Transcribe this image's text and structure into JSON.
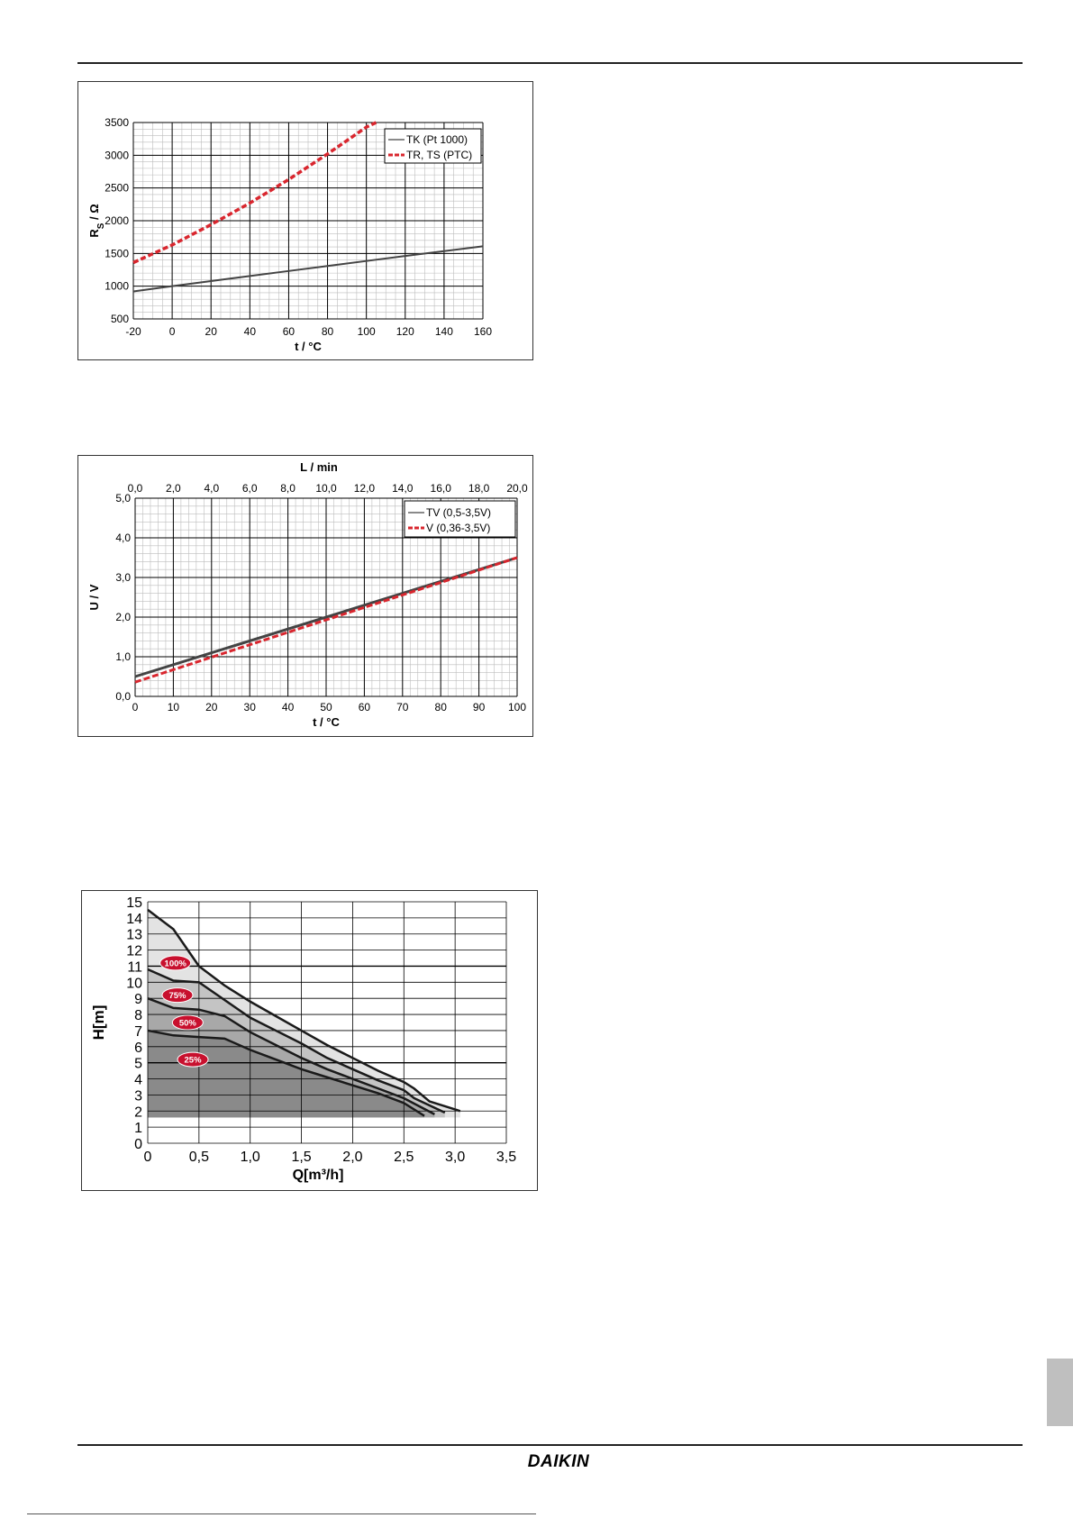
{
  "brand": "DAIKIN",
  "colors": {
    "grid_minor": "#bdbdbd",
    "grid_major": "#000000",
    "red": "#d9262e",
    "dark": "#444444",
    "badge": "#c8102e"
  },
  "chart_data": [
    {
      "type": "line",
      "xlabel": "t  /  °C",
      "ylabel": "R_S  /  Ω",
      "ylabel_main": "R",
      "ylabel_sub": "S",
      "ylabel_rest": "  /  Ω",
      "xlim": [
        -20,
        160
      ],
      "ylim": [
        500,
        3500
      ],
      "x_ticks": [
        -20,
        0,
        20,
        40,
        60,
        80,
        100,
        120,
        140,
        160
      ],
      "y_ticks": [
        500,
        1000,
        1500,
        2000,
        2500,
        3000,
        3500
      ],
      "x_tick_labels": [
        "-20",
        "0",
        "20",
        "40",
        "60",
        "80",
        "100",
        "120",
        "140",
        "160"
      ],
      "y_tick_labels": [
        "500",
        "1000",
        "1500",
        "2000",
        "2500",
        "3000",
        "3500"
      ],
      "grid": true,
      "legend_position": "top-right",
      "series": [
        {
          "name": "TK (Pt 1000)",
          "style": "solid",
          "color": "#444444",
          "x": [
            -20,
            0,
            20,
            40,
            60,
            80,
            100,
            120,
            140,
            160
          ],
          "y": [
            920,
            1000,
            1078,
            1155,
            1232,
            1309,
            1385,
            1461,
            1535,
            1610
          ]
        },
        {
          "name": "TR, TS (PTC)",
          "style": "dashed",
          "color": "#d9262e",
          "x": [
            -20,
            0,
            20,
            40,
            60,
            80,
            100,
            105
          ],
          "y": [
            1360,
            1630,
            1940,
            2270,
            2630,
            3020,
            3430,
            3530
          ]
        }
      ]
    },
    {
      "type": "line",
      "xlabel": "t  /  °C",
      "x2label": "L / min",
      "ylabel": "U / V",
      "xlim": [
        0,
        100
      ],
      "ylim": [
        0,
        5
      ],
      "x_tick_labels": [
        "0",
        "10",
        "20",
        "30",
        "40",
        "50",
        "60",
        "70",
        "80",
        "90",
        "100"
      ],
      "x2_tick_labels": [
        "0,0",
        "2,0",
        "4,0",
        "6,0",
        "8,0",
        "10,0",
        "12,0",
        "14,0",
        "16,0",
        "18,0",
        "20,0"
      ],
      "y_tick_labels": [
        "0,0",
        "1,0",
        "2,0",
        "3,0",
        "4,0",
        "5,0"
      ],
      "grid": true,
      "legend_position": "top-right",
      "series": [
        {
          "name": "TV (0,5-3,5V)",
          "style": "solid",
          "color": "#444444",
          "x": [
            0,
            100
          ],
          "y": [
            0.5,
            3.5
          ]
        },
        {
          "name": "V (0,36-3,5V)",
          "style": "dashed",
          "color": "#d9262e",
          "x": [
            0,
            100
          ],
          "y": [
            0.36,
            3.5
          ]
        }
      ]
    },
    {
      "type": "area",
      "xlabel": "Q[m³/h]",
      "ylabel": "H[m]",
      "xlim": [
        0,
        3.5
      ],
      "ylim": [
        0,
        15
      ],
      "x_tick_labels": [
        "0",
        "0,5",
        "1,0",
        "1,5",
        "2,0",
        "2,5",
        "3,0",
        "3,5"
      ],
      "y_tick_labels": [
        "0",
        "1",
        "2",
        "3",
        "4",
        "5",
        "6",
        "7",
        "8",
        "9",
        "10",
        "11",
        "12",
        "13",
        "14",
        "15"
      ],
      "grid": true,
      "series": [
        {
          "name": "100%",
          "fill": "#e3e3e3",
          "x": [
            0,
            0.25,
            0.5,
            0.75,
            1.0,
            1.25,
            1.5,
            1.75,
            2.0,
            2.25,
            2.5,
            2.6,
            2.75,
            3.05
          ],
          "y": [
            14.5,
            13.3,
            11.0,
            9.8,
            8.8,
            7.9,
            7.0,
            6.1,
            5.3,
            4.5,
            3.8,
            3.4,
            2.6,
            2.0
          ]
        },
        {
          "name": "75%",
          "fill": "#c4c4c4",
          "x": [
            0,
            0.25,
            0.5,
            0.75,
            1.0,
            1.25,
            1.5,
            1.75,
            2.0,
            2.25,
            2.5,
            2.6,
            2.9
          ],
          "y": [
            10.8,
            10.1,
            10.0,
            8.9,
            7.8,
            7.0,
            6.2,
            5.3,
            4.6,
            3.9,
            3.3,
            2.8,
            1.9
          ]
        },
        {
          "name": "50%",
          "fill": "#a8a8a8",
          "x": [
            0,
            0.25,
            0.5,
            0.75,
            1.0,
            1.25,
            1.5,
            1.75,
            2.0,
            2.25,
            2.5,
            2.8
          ],
          "y": [
            9.0,
            8.4,
            8.3,
            7.9,
            6.9,
            6.1,
            5.3,
            4.6,
            4.0,
            3.4,
            2.8,
            1.8
          ]
        },
        {
          "name": "25%",
          "fill": "#8a8a8a",
          "x": [
            0,
            0.25,
            0.5,
            0.75,
            1.0,
            1.25,
            1.5,
            1.75,
            2.0,
            2.25,
            2.5,
            2.7
          ],
          "y": [
            7.0,
            6.7,
            6.6,
            6.5,
            5.8,
            5.2,
            4.6,
            4.1,
            3.6,
            3.1,
            2.5,
            1.7
          ]
        }
      ],
      "badges": [
        {
          "label": "100%",
          "x": 0.27,
          "y": 11.2
        },
        {
          "label": "75%",
          "x": 0.29,
          "y": 9.2
        },
        {
          "label": "50%",
          "x": 0.39,
          "y": 7.5
        },
        {
          "label": "25%",
          "x": 0.44,
          "y": 5.2
        }
      ]
    }
  ]
}
